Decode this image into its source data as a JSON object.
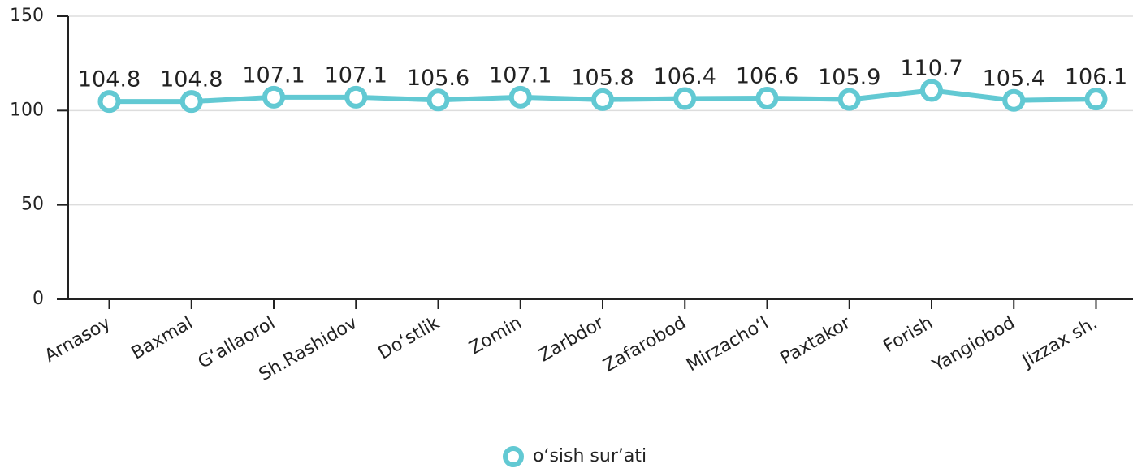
{
  "chart_data": {
    "type": "line",
    "categories": [
      "Arnasoy",
      "Baxmal",
      "G‘allaorol",
      "Sh.Rashidov",
      "Do‘stlik",
      "Zomin",
      "Zarbdor",
      "Zafarobod",
      "Mirzacho‘l",
      "Paxtakor",
      "Forish",
      "Yangiobod",
      "Jizzax sh."
    ],
    "series": [
      {
        "name": "o‘sish sur’ati",
        "color": "#62c9d3",
        "values": [
          104.8,
          104.8,
          107.1,
          107.1,
          105.6,
          107.1,
          105.8,
          106.4,
          106.6,
          105.9,
          110.7,
          105.4,
          106.1
        ]
      }
    ],
    "ylim": [
      0,
      150
    ],
    "yticks": [
      0,
      50,
      100,
      150
    ],
    "grid": true
  }
}
